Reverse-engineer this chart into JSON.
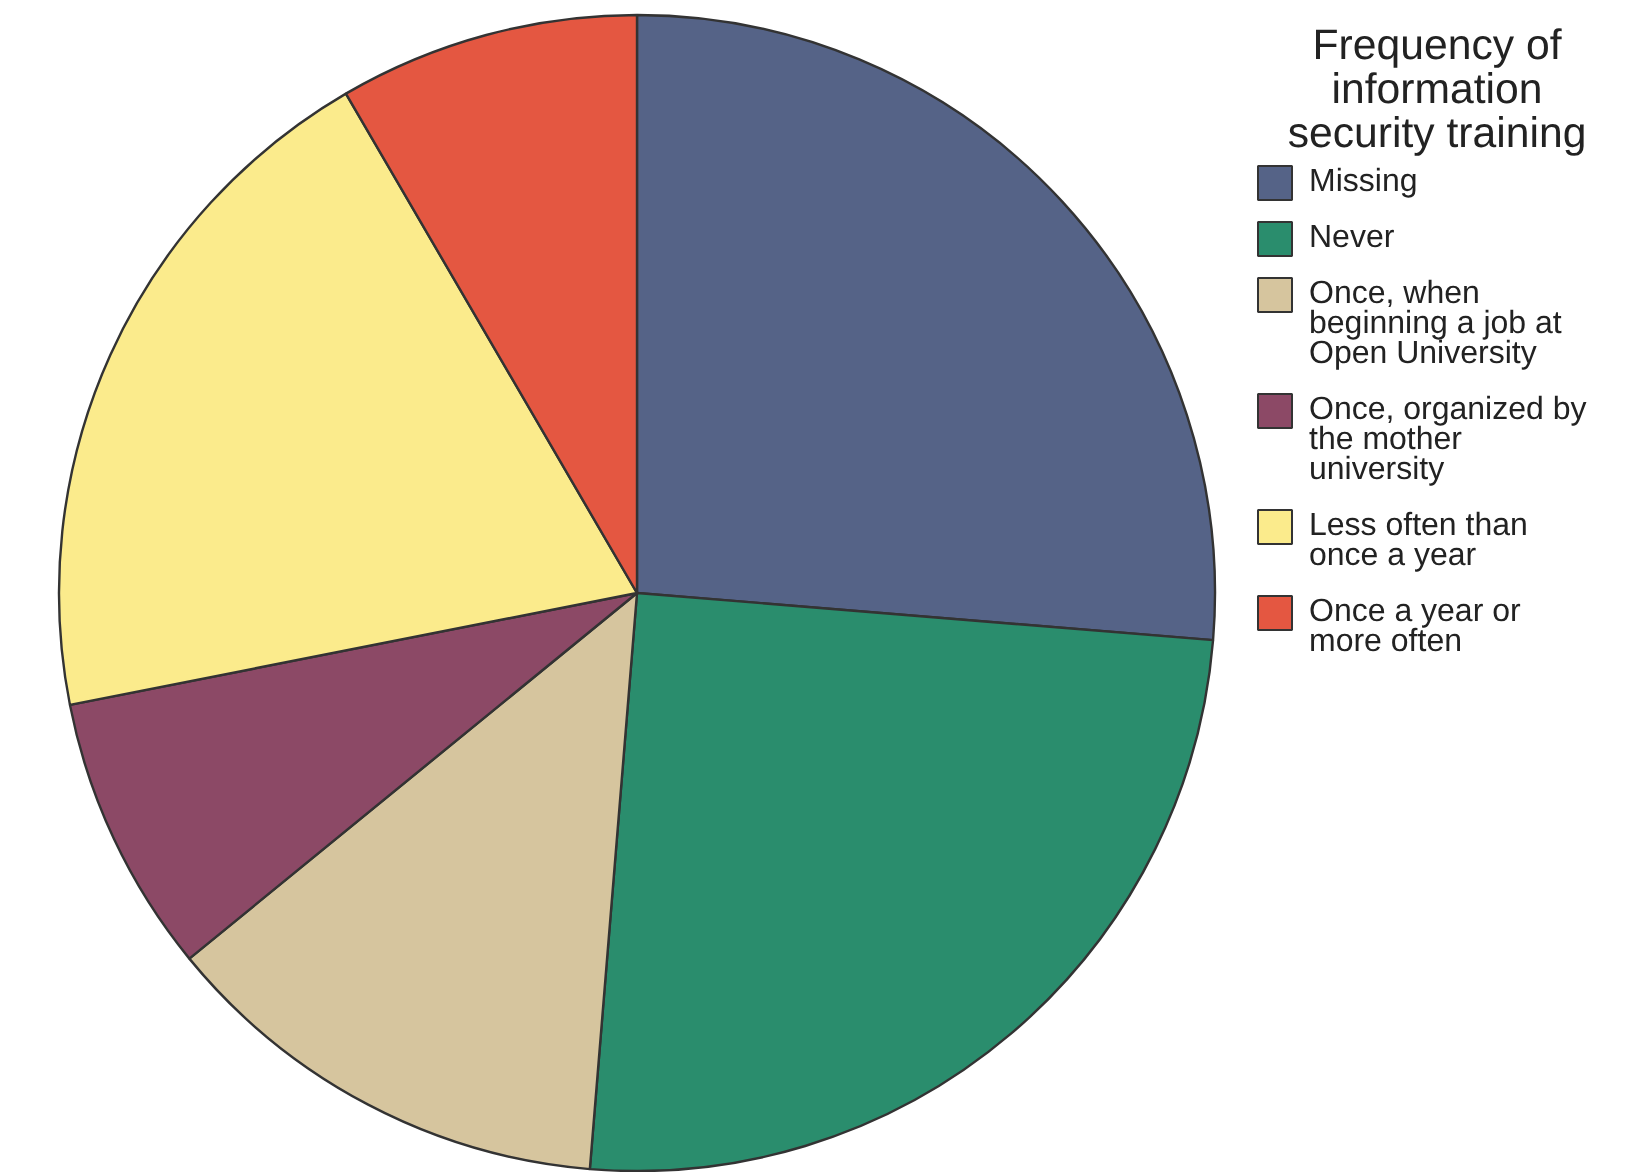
{
  "chart_data": {
    "type": "pie",
    "legend_title": "Frequency of information security training",
    "legend": "right",
    "categories": [
      "Missing",
      "Never",
      "Once, when beginning a job at Open University",
      "Once, organized by the mother university",
      "Less often than once a year",
      "Once a year or more often"
    ],
    "values": [
      26.3,
      25,
      12.8,
      7.8,
      19.7,
      8.4
    ],
    "colors": [
      "#556387",
      "#2a8d6d",
      "#d6c59e",
      "#8c4966",
      "#fbeb8c",
      "#e45741"
    ]
  }
}
